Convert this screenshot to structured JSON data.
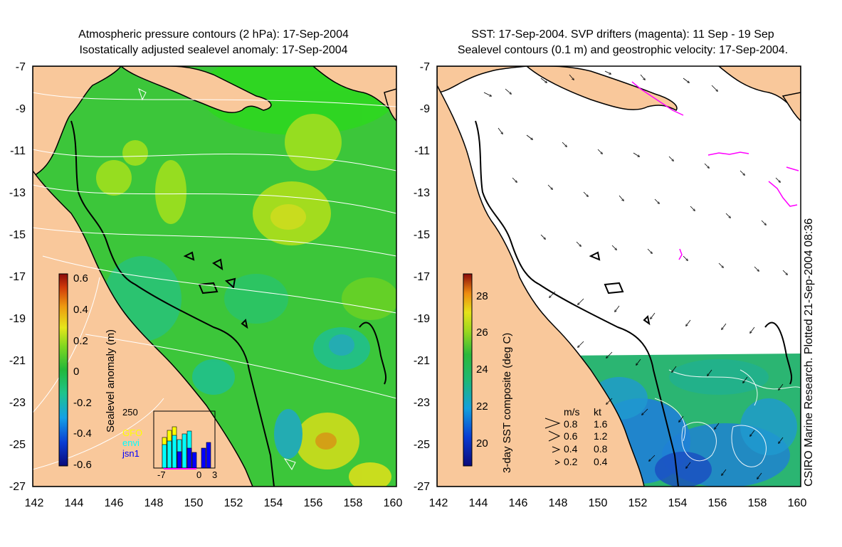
{
  "left_panel": {
    "title_line1": "Atmospheric pressure contours (2 hPa): 17-Sep-2004",
    "title_line2": "Isostatically adjusted sealevel anomaly: 17-Sep-2004",
    "colorbar": {
      "label": "Sealevel anomaly (m)",
      "ticks": [
        "0.6",
        "0.4",
        "0.2",
        "0",
        "-0.2",
        "-0.4",
        "-0.6"
      ]
    },
    "inset": {
      "ymax_label": "250",
      "x_ticks": [
        "-7",
        "0",
        "3"
      ],
      "legend": [
        {
          "name": "GFO",
          "color": "#ffff00"
        },
        {
          "name": "envi",
          "color": "#00ffff"
        },
        {
          "name": "jsn1",
          "color": "#0000ff"
        }
      ]
    }
  },
  "right_panel": {
    "title_line1": "SST: 17-Sep-2004. SVP drifters (magenta): 11 Sep - 19 Sep",
    "title_line2": "Sealevel contours (0.1 m) and geostrophic velocity: 17-Sep-2004.",
    "colorbar": {
      "label": "3-day SST composite (deg C)",
      "ticks": [
        "28",
        "26",
        "24",
        "22",
        "20"
      ]
    },
    "speed_legend": {
      "header_ms": "m/s",
      "header_kt": "kt",
      "rows": [
        {
          "ms": "0.8",
          "kt": "1.6"
        },
        {
          "ms": "0.6",
          "kt": "1.2"
        },
        {
          "ms": "0.4",
          "kt": "0.8"
        },
        {
          "ms": "0.2",
          "kt": "0.4"
        }
      ]
    }
  },
  "axes": {
    "lat_ticks": [
      "-7",
      "-9",
      "-11",
      "-13",
      "-15",
      "-17",
      "-19",
      "-21",
      "-23",
      "-25",
      "-27"
    ],
    "lon_ticks": [
      "142",
      "144",
      "146",
      "148",
      "150",
      "152",
      "154",
      "156",
      "158",
      "160"
    ]
  },
  "credit": "CSIRO Marine Research. Plotted 21-Sep-2004 08:36",
  "colors": {
    "land": "#f9c89b",
    "ocean_green": "#34c23c",
    "sst_green": "#2bb572",
    "sst_blue": "#1a55c8",
    "drifter": "#ff00ff"
  }
}
